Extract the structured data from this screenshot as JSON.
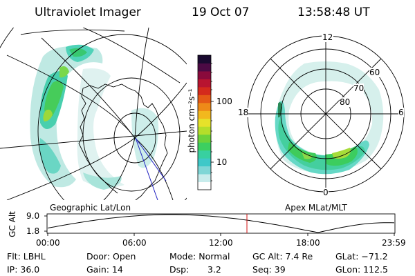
{
  "header": {
    "instrument": "Ultraviolet Imager",
    "date": "19 Oct 07",
    "time": "13:58:48 UT"
  },
  "left_panel": {
    "label": "Geographic Lat/Lon"
  },
  "right_panel": {
    "label": "Apex MLat/MLT",
    "mlt_labels": {
      "top": "12",
      "left": "18",
      "right": "6",
      "bottom": "0"
    },
    "lat_labels": [
      "60",
      "70",
      "80"
    ]
  },
  "colorbar": {
    "unit_label": "photon cm⁻²s⁻¹",
    "tick_labels": [
      "100",
      "10"
    ],
    "colors": [
      "#ffffff",
      "#c8ecec",
      "#7fd6d6",
      "#3fc8c8",
      "#38d0a0",
      "#3ccf60",
      "#6cd23a",
      "#b4de2a",
      "#e6e22a",
      "#f2b81e",
      "#ee8a18",
      "#e45a16",
      "#d42a1c",
      "#b81430",
      "#8a0a3c",
      "#4c0a44",
      "#1a0a30"
    ]
  },
  "altitude_plot": {
    "ylabel": "GC Alt",
    "y_ticks": [
      "9.0",
      "1.8"
    ],
    "x_ticks": [
      "00:00",
      "06:00",
      "12:00",
      "18:00",
      "23:59"
    ],
    "marker_color": "#d01010"
  },
  "info": {
    "flt": "Flt: LBHL",
    "door": "Door: Open",
    "mode": "Mode: Normal",
    "gc_alt": "GC Alt: 7.4 Re",
    "glat": "GLat: −71.2",
    "ip": "IP: 36.0",
    "gain": "Gain: 14",
    "dsp_label": "Dsp:",
    "dsp_value": "3.2",
    "seq": "Seq: 39",
    "glon": "GLon: 112.5"
  }
}
